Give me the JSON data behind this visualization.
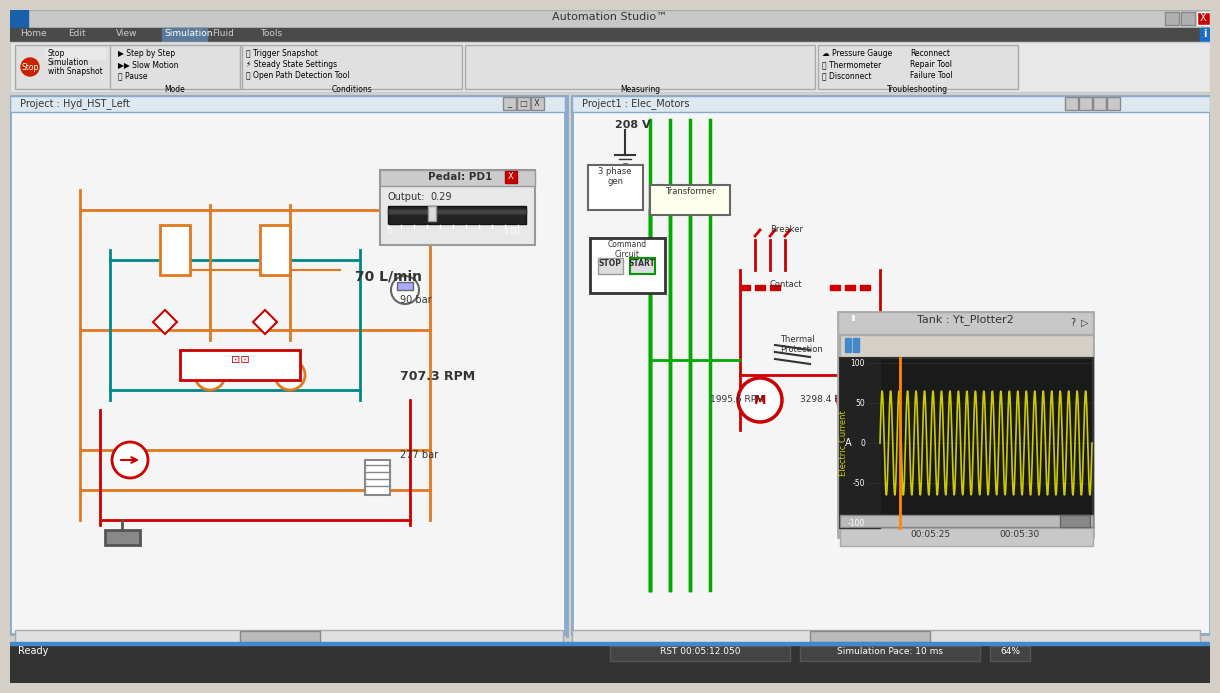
{
  "title_bar": "Automation Studio™",
  "bg_color": "#d4d0c8",
  "toolbar_color": "#f0f0f0",
  "dark_bar_color": "#4a4a4a",
  "status_bar_color": "#3a3a3a",
  "left_panel_title": "Project : Hyd_HST_Left",
  "right_panel_title": "Project1 : Elec_Motors",
  "plotter_title": "Tank : Yt_Plotter2",
  "plotter_bg": "#1a1a1a",
  "plotter_line_color": "#cccc00",
  "plotter_ylabel": "Electric Current",
  "plotter_yunit": "A",
  "plotter_time1": "00:05:25",
  "plotter_time2": "00:05:30",
  "plotter_yticks": [
    100,
    50,
    0,
    -50,
    -100
  ],
  "hydraulic_orange": "#e07820",
  "hydraulic_red": "#cc0000",
  "hydraulic_teal": "#008888",
  "electric_green": "#00aa00",
  "electric_red": "#cc0000",
  "text_70lmin": "70 L/min",
  "text_707rpm": "707.3 RPM",
  "text_90bar": "90 bar",
  "text_277bar": "277 bar",
  "text_1995rpm": "1995.6 RPM",
  "text_3298rpm": "3298.4 RPM",
  "text_208v": "208 V",
  "text_3phase": "3 phase\ngen",
  "text_transformer": "Transformer",
  "text_breaker": "Breaker",
  "text_contact": "Contact",
  "text_thermal": "Thermal\nProtection",
  "pedal_output": "0.29",
  "status_ready": "Ready",
  "status_time": "RST 00:05:12.050",
  "status_pace": "Simulation Pace: 10 ms",
  "status_pct": "64%"
}
